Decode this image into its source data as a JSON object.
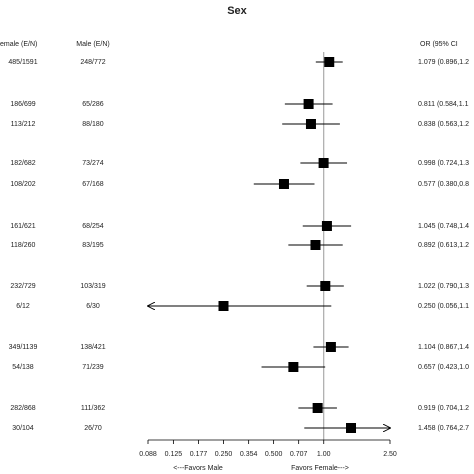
{
  "chart_data": {
    "type": "forest",
    "title": "Sex",
    "columns": [
      "emale (E/N)",
      "Male (E/N)",
      "OR (95% CI"
    ],
    "female": [
      "485/1591",
      "186/699",
      "113/212",
      "182/682",
      "108/202",
      "161/621",
      "118/260",
      "232/729",
      "6/12",
      "349/1139",
      "54/138",
      "282/868",
      "30/104"
    ],
    "male": [
      "248/772",
      "65/286",
      "88/180",
      "73/274",
      "67/168",
      "68/254",
      "83/195",
      "103/319",
      "6/30",
      "138/421",
      "71/239",
      "111/362",
      "26/70"
    ],
    "or_labels": [
      "1.079 (0.896,1.2",
      "0.811 (0.584,1.1",
      "0.838 (0.563,1.2",
      "0.998 (0.724,1.3",
      "0.577 (0.380,0.8",
      "1.045 (0.748,1.4",
      "0.892 (0.613,1.2",
      "1.022 (0.790,1.3",
      "0.250 (0.056,1.1",
      "1.104 (0.867,1.4",
      "0.657 (0.423,1.0",
      "0.919 (0.704,1.2",
      "1.458 (0.764,2.7"
    ],
    "values": [
      1.079,
      0.811,
      0.838,
      0.998,
      0.577,
      1.045,
      0.892,
      1.022,
      0.25,
      1.104,
      0.657,
      0.919,
      1.458
    ],
    "lower": [
      0.896,
      0.584,
      0.563,
      0.724,
      0.38,
      0.748,
      0.613,
      0.79,
      0.056,
      0.867,
      0.423,
      0.704,
      0.764
    ],
    "upper": [
      1.3,
      1.13,
      1.25,
      1.38,
      0.88,
      1.46,
      1.3,
      1.32,
      1.11,
      1.41,
      1.02,
      1.2,
      2.78
    ],
    "xlim": [
      0.088,
      2.5
    ],
    "log_scale": true,
    "reference": 1,
    "xticks": [
      0.088,
      0.125,
      0.177,
      {
        "value": 0.25,
        "label": "0.250"
      },
      0.354,
      {
        "value": 0.5,
        "label": "0.500"
      },
      0.707,
      {
        "value": 1,
        "label": "1.00"
      },
      {
        "value": 2.5,
        "label": "2.50"
      }
    ],
    "x_left_label": "<---Favors Male",
    "x_right_label": "Favors Female--->",
    "color": "#000000"
  }
}
